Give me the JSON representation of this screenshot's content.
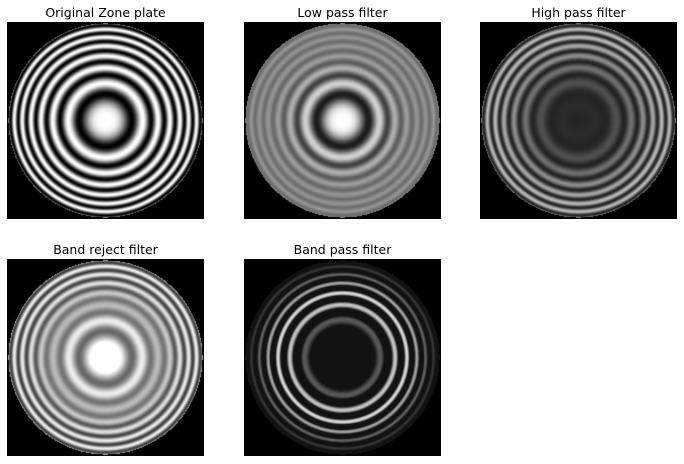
{
  "figure": {
    "panels": [
      {
        "title": "Original Zone plate",
        "filter": "original",
        "image_description": "zone plate with high contrast concentric rings"
      },
      {
        "title": "Low pass filter",
        "filter": "low-pass",
        "image_description": "zone plate with blurred outer rings and strong center"
      },
      {
        "title": "High pass filter",
        "filter": "high-pass",
        "image_description": "zone plate with dark center and fine outer rings"
      },
      {
        "title": "Band reject filter",
        "filter": "band-reject",
        "image_description": "zone plate with intermediate rings suppressed"
      },
      {
        "title": "Band pass filter",
        "filter": "band-pass",
        "image_description": "zone plate with middle frequency rings emphasized"
      }
    ],
    "colors": {
      "background": "#ffffff",
      "image_background": "#000000",
      "text": "#000000"
    }
  }
}
